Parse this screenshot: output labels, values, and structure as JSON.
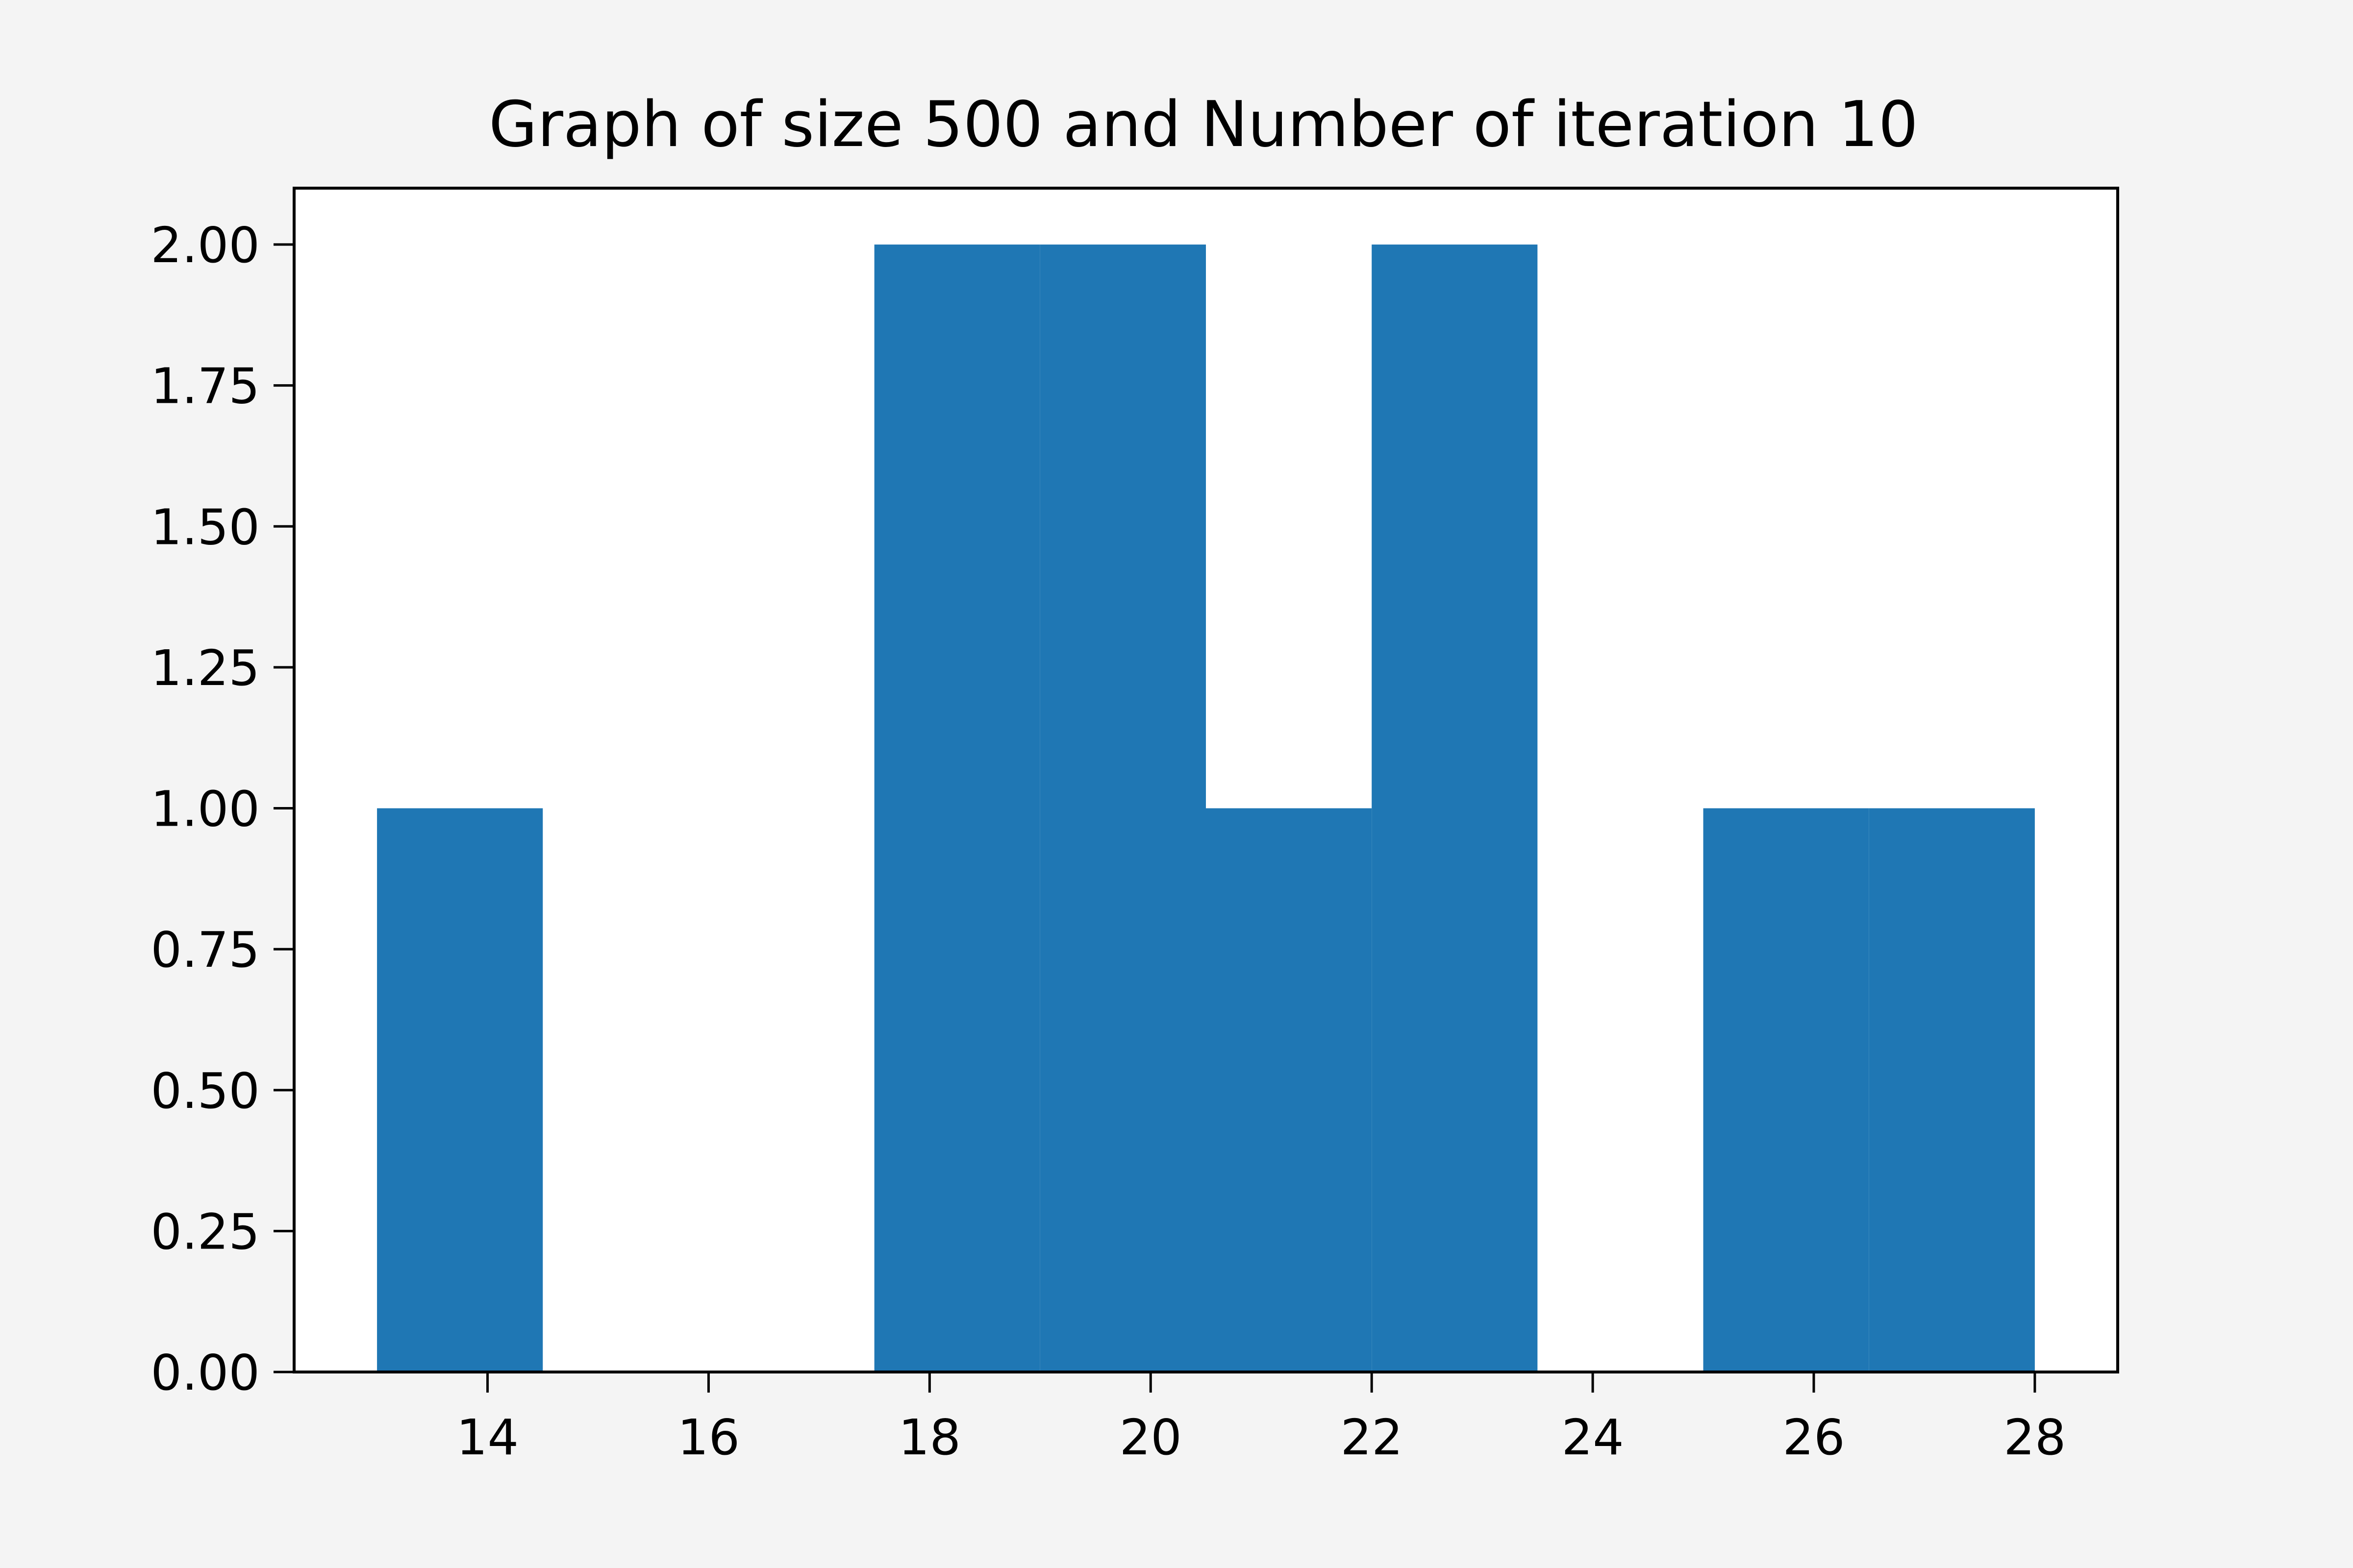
{
  "chart_data": {
    "type": "bar",
    "title": "Graph of size 500 and Number of iteration 10",
    "xlabel": "",
    "ylabel": "",
    "bins": [
      {
        "x0": 13.0,
        "x1": 14.5,
        "value": 1
      },
      {
        "x0": 14.5,
        "x1": 16.0,
        "value": 0
      },
      {
        "x0": 16.0,
        "x1": 17.5,
        "value": 0
      },
      {
        "x0": 17.5,
        "x1": 19.0,
        "value": 2
      },
      {
        "x0": 19.0,
        "x1": 20.5,
        "value": 2
      },
      {
        "x0": 20.5,
        "x1": 22.0,
        "value": 1
      },
      {
        "x0": 22.0,
        "x1": 23.5,
        "value": 2
      },
      {
        "x0": 23.5,
        "x1": 25.0,
        "value": 0
      },
      {
        "x0": 25.0,
        "x1": 26.5,
        "value": 1
      },
      {
        "x0": 26.5,
        "x1": 28.0,
        "value": 1
      }
    ],
    "xlim": [
      12.25,
      28.75
    ],
    "ylim": [
      0,
      2.1
    ],
    "xticks": [
      14,
      16,
      18,
      20,
      22,
      24,
      26,
      28
    ],
    "yticks": [
      0,
      0.25,
      0.5,
      0.75,
      1.0,
      1.25,
      1.5,
      1.75,
      2.0
    ],
    "ytick_labels": [
      "0.00",
      "0.25",
      "0.50",
      "0.75",
      "1.00",
      "1.25",
      "1.50",
      "1.75",
      "2.00"
    ],
    "grid": false,
    "bar_color": "#1f77b4",
    "background": "#f4f4f4",
    "plot_background": "#ffffff"
  }
}
